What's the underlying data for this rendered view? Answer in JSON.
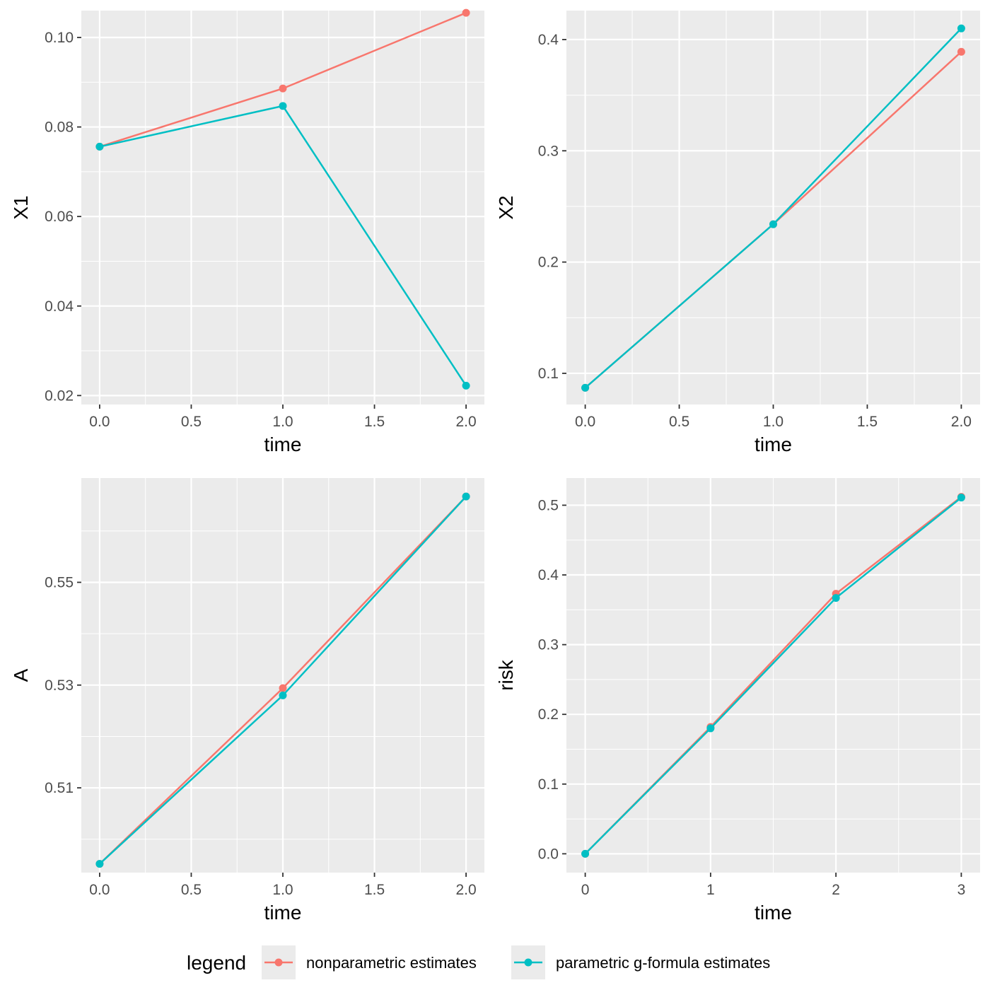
{
  "legend": {
    "title": "legend",
    "items": [
      {
        "label": "nonparametric estimates",
        "color": "#F8766D"
      },
      {
        "label": "parametric g-formula estimates",
        "color": "#00BFC4"
      }
    ]
  },
  "chart_data": [
    {
      "type": "line",
      "xlabel": "time",
      "ylabel": "X1",
      "x": [
        0,
        1,
        2
      ],
      "xlim": [
        -0.1,
        2.1
      ],
      "ylim": [
        0.018,
        0.106
      ],
      "xticks": [
        0,
        0.5,
        1,
        1.5,
        2
      ],
      "xtick_labels": [
        "0.0",
        "0.5",
        "1.0",
        "1.5",
        "2.0"
      ],
      "yticks": [
        0.02,
        0.04,
        0.06,
        0.08,
        0.1
      ],
      "ytick_labels": [
        "0.02",
        "0.04",
        "0.06",
        "0.08",
        "0.10"
      ],
      "series": [
        {
          "name": "nonparametric estimates",
          "values": [
            0.0756,
            0.0886,
            0.1055
          ]
        },
        {
          "name": "parametric g-formula estimates",
          "values": [
            0.0756,
            0.0847,
            0.0222
          ]
        }
      ]
    },
    {
      "type": "line",
      "xlabel": "time",
      "ylabel": "X2",
      "x": [
        0,
        1,
        2
      ],
      "xlim": [
        -0.1,
        2.1
      ],
      "ylim": [
        0.072,
        0.426
      ],
      "xticks": [
        0,
        0.5,
        1,
        1.5,
        2
      ],
      "xtick_labels": [
        "0.0",
        "0.5",
        "1.0",
        "1.5",
        "2.0"
      ],
      "yticks": [
        0.1,
        0.2,
        0.3,
        0.4
      ],
      "ytick_labels": [
        "0.1",
        "0.2",
        "0.3",
        "0.4"
      ],
      "series": [
        {
          "name": "nonparametric estimates",
          "values": [
            0.087,
            0.234,
            0.389
          ]
        },
        {
          "name": "parametric g-formula estimates",
          "values": [
            0.087,
            0.234,
            0.41
          ]
        }
      ]
    },
    {
      "type": "line",
      "xlabel": "time",
      "ylabel": "A",
      "x": [
        0,
        1,
        2
      ],
      "xlim": [
        -0.1,
        2.1
      ],
      "ylim": [
        0.4935,
        0.5703
      ],
      "xticks": [
        0,
        0.5,
        1,
        1.5,
        2
      ],
      "xtick_labels": [
        "0.0",
        "0.5",
        "1.0",
        "1.5",
        "2.0"
      ],
      "yticks": [
        0.51,
        0.53,
        0.55
      ],
      "ytick_labels": [
        "0.51",
        "0.53",
        "0.55"
      ],
      "series": [
        {
          "name": "nonparametric estimates",
          "values": [
            0.4952,
            0.5294,
            0.5667
          ]
        },
        {
          "name": "parametric g-formula estimates",
          "values": [
            0.4952,
            0.528,
            0.5667
          ]
        }
      ]
    },
    {
      "type": "line",
      "xlabel": "time",
      "ylabel": "risk",
      "x": [
        0,
        1,
        2,
        3
      ],
      "xlim": [
        -0.15,
        3.15
      ],
      "ylim": [
        -0.027,
        0.539
      ],
      "xticks": [
        0,
        1,
        2,
        3
      ],
      "xtick_labels": [
        "0",
        "1",
        "2",
        "3"
      ],
      "yticks": [
        0,
        0.1,
        0.2,
        0.3,
        0.4,
        0.5
      ],
      "ytick_labels": [
        "0.0",
        "0.1",
        "0.2",
        "0.3",
        "0.4",
        "0.5"
      ],
      "series": [
        {
          "name": "nonparametric estimates",
          "values": [
            0,
            0.182,
            0.373,
            0.512
          ]
        },
        {
          "name": "parametric g-formula estimates",
          "values": [
            0,
            0.18,
            0.367,
            0.511
          ]
        }
      ]
    }
  ]
}
